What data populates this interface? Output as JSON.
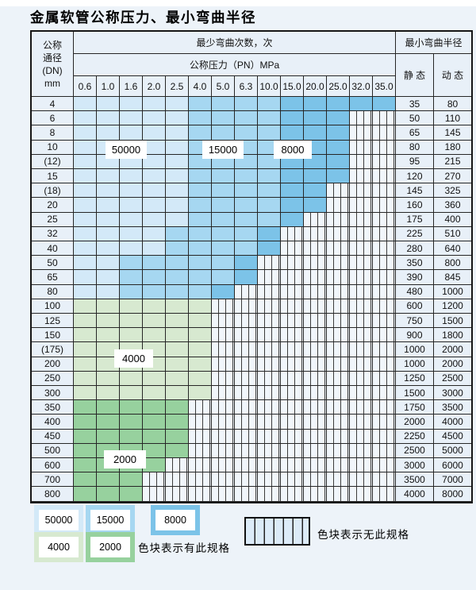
{
  "title": "金属软管公称压力、最小弯曲半径",
  "header": {
    "dn_lines": [
      "公称",
      "通径",
      "(DN)",
      "mm"
    ],
    "bend_times_label": "最少弯曲次数，次",
    "pressure_label": "公称压力（PN）MPa",
    "radius_label": "最小弯曲半径",
    "static_label": "静 态",
    "dynamic_label": "动 态",
    "pressure_columns": [
      "0.6",
      "1.0",
      "1.6",
      "2.0",
      "2.5",
      "4.0",
      "5.0",
      "6.3",
      "10.0",
      "15.0",
      "20.0",
      "25.0",
      "32.0",
      "35.0"
    ]
  },
  "rows": [
    {
      "dn": "4",
      "zones": [
        {
          "cycles": "50000",
          "count": 5
        },
        {
          "cycles": "15000",
          "count": 4
        },
        {
          "cycles": "8000",
          "count": 5
        }
      ],
      "static": "35",
      "dynamic": "80"
    },
    {
      "dn": "6",
      "zones": [
        {
          "cycles": "50000",
          "count": 5
        },
        {
          "cycles": "15000",
          "count": 4
        },
        {
          "cycles": "8000",
          "count": 3
        }
      ],
      "static": "50",
      "dynamic": "110"
    },
    {
      "dn": "8",
      "zones": [
        {
          "cycles": "50000",
          "count": 5
        },
        {
          "cycles": "15000",
          "count": 4
        },
        {
          "cycles": "8000",
          "count": 3
        }
      ],
      "static": "65",
      "dynamic": "145"
    },
    {
      "dn": "10",
      "zones": [
        {
          "cycles": "50000",
          "count": 5
        },
        {
          "cycles": "15000",
          "count": 4
        },
        {
          "cycles": "8000",
          "count": 3
        }
      ],
      "static": "80",
      "dynamic": "180"
    },
    {
      "dn": "(12)",
      "zones": [
        {
          "cycles": "50000",
          "count": 5
        },
        {
          "cycles": "15000",
          "count": 4
        },
        {
          "cycles": "8000",
          "count": 3
        }
      ],
      "static": "95",
      "dynamic": "215"
    },
    {
      "dn": "15",
      "zones": [
        {
          "cycles": "50000",
          "count": 5
        },
        {
          "cycles": "15000",
          "count": 4
        },
        {
          "cycles": "8000",
          "count": 3
        }
      ],
      "static": "120",
      "dynamic": "270"
    },
    {
      "dn": "(18)",
      "zones": [
        {
          "cycles": "50000",
          "count": 5
        },
        {
          "cycles": "15000",
          "count": 4
        },
        {
          "cycles": "8000",
          "count": 2
        }
      ],
      "static": "145",
      "dynamic": "325"
    },
    {
      "dn": "20",
      "zones": [
        {
          "cycles": "50000",
          "count": 5
        },
        {
          "cycles": "15000",
          "count": 4
        },
        {
          "cycles": "8000",
          "count": 2
        }
      ],
      "static": "160",
      "dynamic": "360"
    },
    {
      "dn": "25",
      "zones": [
        {
          "cycles": "50000",
          "count": 5
        },
        {
          "cycles": "15000",
          "count": 4
        },
        {
          "cycles": "8000",
          "count": 1
        }
      ],
      "static": "175",
      "dynamic": "400"
    },
    {
      "dn": "32",
      "zones": [
        {
          "cycles": "50000",
          "count": 4
        },
        {
          "cycles": "15000",
          "count": 4
        },
        {
          "cycles": "8000",
          "count": 1
        }
      ],
      "static": "225",
      "dynamic": "510"
    },
    {
      "dn": "40",
      "zones": [
        {
          "cycles": "50000",
          "count": 4
        },
        {
          "cycles": "15000",
          "count": 4
        },
        {
          "cycles": "8000",
          "count": 1
        }
      ],
      "static": "280",
      "dynamic": "640"
    },
    {
      "dn": "50",
      "zones": [
        {
          "cycles": "50000",
          "count": 2
        },
        {
          "cycles": "15000",
          "count": 5
        },
        {
          "cycles": "8000",
          "count": 1
        }
      ],
      "static": "350",
      "dynamic": "800"
    },
    {
      "dn": "65",
      "zones": [
        {
          "cycles": "50000",
          "count": 2
        },
        {
          "cycles": "15000",
          "count": 5
        },
        {
          "cycles": "8000",
          "count": 1
        }
      ],
      "static": "390",
      "dynamic": "845"
    },
    {
      "dn": "80",
      "zones": [
        {
          "cycles": "50000",
          "count": 2
        },
        {
          "cycles": "15000",
          "count": 4
        },
        {
          "cycles": "8000",
          "count": 1
        }
      ],
      "static": "480",
      "dynamic": "1000"
    },
    {
      "dn": "100",
      "zones": [
        {
          "cycles": "4000",
          "count": 6
        }
      ],
      "static": "600",
      "dynamic": "1200"
    },
    {
      "dn": "125",
      "zones": [
        {
          "cycles": "4000",
          "count": 6
        }
      ],
      "static": "750",
      "dynamic": "1500"
    },
    {
      "dn": "150",
      "zones": [
        {
          "cycles": "4000",
          "count": 6
        }
      ],
      "static": "900",
      "dynamic": "1800"
    },
    {
      "dn": "(175)",
      "zones": [
        {
          "cycles": "4000",
          "count": 6
        }
      ],
      "static": "1000",
      "dynamic": "2000"
    },
    {
      "dn": "200",
      "zones": [
        {
          "cycles": "4000",
          "count": 6
        }
      ],
      "static": "1000",
      "dynamic": "2000"
    },
    {
      "dn": "250",
      "zones": [
        {
          "cycles": "4000",
          "count": 6
        }
      ],
      "static": "1250",
      "dynamic": "2500"
    },
    {
      "dn": "300",
      "zones": [
        {
          "cycles": "4000",
          "count": 6
        }
      ],
      "static": "1500",
      "dynamic": "3000"
    },
    {
      "dn": "350",
      "zones": [
        {
          "cycles": "2000",
          "count": 5
        }
      ],
      "static": "1750",
      "dynamic": "3500"
    },
    {
      "dn": "400",
      "zones": [
        {
          "cycles": "2000",
          "count": 5
        }
      ],
      "static": "2000",
      "dynamic": "4000"
    },
    {
      "dn": "450",
      "zones": [
        {
          "cycles": "2000",
          "count": 5
        }
      ],
      "static": "2250",
      "dynamic": "4500"
    },
    {
      "dn": "500",
      "zones": [
        {
          "cycles": "2000",
          "count": 5
        }
      ],
      "static": "2500",
      "dynamic": "5000"
    },
    {
      "dn": "600",
      "zones": [
        {
          "cycles": "2000",
          "count": 4
        }
      ],
      "static": "3000",
      "dynamic": "6000"
    },
    {
      "dn": "700",
      "zones": [
        {
          "cycles": "2000",
          "count": 3
        }
      ],
      "static": "3500",
      "dynamic": "7000"
    },
    {
      "dn": "800",
      "zones": [
        {
          "cycles": "2000",
          "count": 3
        }
      ],
      "static": "4000",
      "dynamic": "8000"
    }
  ],
  "overlays": {
    "blue_50000": "50000",
    "blue_15000": "15000",
    "blue_8000": "8000",
    "green_4000": "4000",
    "green_2000": "2000"
  },
  "legend": {
    "items": [
      {
        "label": "50000"
      },
      {
        "label": "15000"
      },
      {
        "label": "8000"
      },
      {
        "label": "4000"
      },
      {
        "label": "2000"
      }
    ],
    "has_spec_text": "色块表示有此规格",
    "no_spec_text": "色块表示无此规格"
  },
  "colors": {
    "c50000": "#d3e9f8",
    "c15000": "#a6d7f1",
    "c8000": "#7cc3e8",
    "c4000": "#d7e9d0",
    "c2000": "#97d19e",
    "hatch_bg": "#f1f6fb",
    "hatch_line": "#3c3c3c",
    "label_cell_bg": "#e8f0f8",
    "grid_line": "#262626",
    "page_bg": "#edf3f9"
  }
}
